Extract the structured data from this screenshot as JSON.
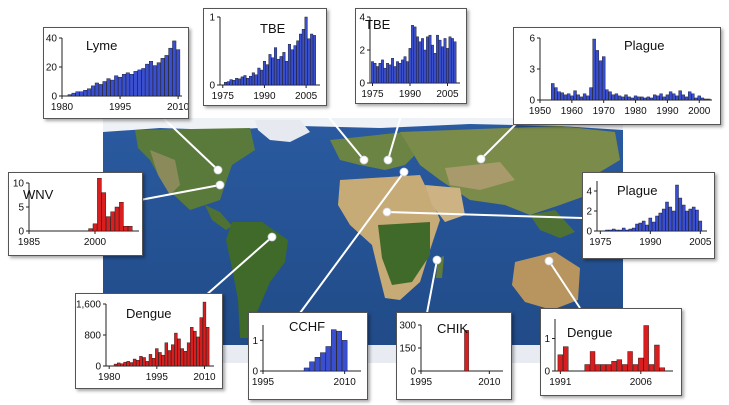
{
  "colors": {
    "ocean": "#2f5f9e",
    "blue_bar": "#3a4fd0",
    "red_bar": "#d81e1e",
    "land_green": "#5e7a3a",
    "desert": "#c9ad79",
    "ice": "#eef1f5"
  },
  "chart_data": [
    {
      "id": "lyme",
      "type": "bar",
      "title": "Lyme",
      "color": "blue",
      "xlim": [
        1980,
        2011
      ],
      "ylim": [
        0,
        40
      ],
      "xticks": [
        {
          "v": 1980,
          "label": "1980"
        },
        {
          "v": 1995,
          "label": "1995"
        },
        {
          "v": 2010,
          "label": "2010"
        }
      ],
      "yticks": [
        {
          "v": 0,
          "label": "0"
        },
        {
          "v": 20,
          "label": "20"
        },
        {
          "v": 40,
          "label": "40"
        }
      ],
      "x": [
        1982,
        1983,
        1984,
        1985,
        1986,
        1987,
        1988,
        1989,
        1990,
        1991,
        1992,
        1993,
        1994,
        1995,
        1996,
        1997,
        1998,
        1999,
        2000,
        2001,
        2002,
        2003,
        2004,
        2005,
        2006,
        2007,
        2008,
        2009,
        2010
      ],
      "values": [
        1,
        2,
        3,
        3,
        4,
        5,
        7,
        9,
        8,
        10,
        12,
        11,
        14,
        13,
        15,
        16,
        15,
        17,
        18,
        19,
        22,
        24,
        21,
        23,
        26,
        28,
        33,
        38,
        32
      ]
    },
    {
      "id": "wnv",
      "type": "bar",
      "title": "WNV",
      "color": "red",
      "xlim": [
        1985,
        2010
      ],
      "ylim": [
        0,
        10
      ],
      "xticks": [
        {
          "v": 1985,
          "label": "1985"
        },
        {
          "v": 2000,
          "label": "2000"
        }
      ],
      "yticks": [
        {
          "v": 0,
          "label": "0"
        },
        {
          "v": 5,
          "label": "5"
        },
        {
          "v": 10,
          "label": "10"
        }
      ],
      "x": [
        1999,
        2000,
        2001,
        2002,
        2003,
        2004,
        2005,
        2006,
        2007,
        2008
      ],
      "values": [
        0.5,
        1.5,
        11,
        8,
        3,
        4,
        5,
        6,
        1,
        1
      ]
    },
    {
      "id": "tbe1",
      "type": "bar",
      "title": "TBE",
      "color": "blue",
      "xlim": [
        1974,
        2010
      ],
      "ylim": [
        0,
        1
      ],
      "xticks": [
        {
          "v": 1975,
          "label": "1975"
        },
        {
          "v": 1990,
          "label": "1990"
        },
        {
          "v": 2005,
          "label": "2005"
        }
      ],
      "yticks": [
        {
          "v": 0,
          "label": "0"
        },
        {
          "v": 1,
          "label": "1"
        }
      ],
      "x": [
        1976,
        1977,
        1978,
        1979,
        1980,
        1981,
        1982,
        1983,
        1984,
        1985,
        1986,
        1987,
        1988,
        1989,
        1990,
        1991,
        1992,
        1993,
        1994,
        1995,
        1996,
        1997,
        1998,
        1999,
        2000,
        2001,
        2002,
        2003,
        2004,
        2005,
        2006,
        2007,
        2008
      ],
      "values": [
        0.04,
        0.05,
        0.08,
        0.07,
        0.1,
        0.09,
        0.12,
        0.14,
        0.1,
        0.13,
        0.18,
        0.15,
        0.25,
        0.22,
        0.35,
        0.3,
        0.45,
        0.4,
        0.55,
        0.38,
        0.42,
        0.48,
        0.35,
        0.6,
        0.52,
        0.58,
        0.65,
        0.75,
        0.82,
        1.0,
        0.68,
        0.75,
        0.73
      ]
    },
    {
      "id": "tbe2",
      "type": "bar",
      "title": "TBE",
      "color": "blue",
      "xlim": [
        1974,
        2010
      ],
      "ylim": [
        0,
        4
      ],
      "xticks": [
        {
          "v": 1975,
          "label": "1975"
        },
        {
          "v": 1990,
          "label": "1990"
        },
        {
          "v": 2005,
          "label": "2005"
        }
      ],
      "yticks": [
        {
          "v": 0,
          "label": "0"
        },
        {
          "v": 2,
          "label": "2"
        },
        {
          "v": 4,
          "label": "4"
        }
      ],
      "x": [
        1975,
        1976,
        1977,
        1978,
        1979,
        1980,
        1981,
        1982,
        1983,
        1984,
        1985,
        1986,
        1987,
        1988,
        1989,
        1990,
        1991,
        1992,
        1993,
        1994,
        1995,
        1996,
        1997,
        1998,
        1999,
        2000,
        2001,
        2002,
        2003,
        2004,
        2005,
        2006,
        2007,
        2008
      ],
      "values": [
        1.3,
        1.2,
        1.0,
        1.2,
        1.4,
        0.9,
        1.2,
        1.1,
        1.5,
        1.0,
        1.3,
        1.2,
        1.4,
        1.6,
        1.3,
        2.1,
        3.5,
        3.4,
        2.8,
        2.5,
        2.7,
        2.0,
        2.8,
        2.9,
        2.3,
        1.8,
        2.9,
        2.6,
        2.2,
        2.7,
        2.1,
        2.8,
        2.7,
        2.5
      ]
    },
    {
      "id": "plague1",
      "type": "bar",
      "title": "Plague",
      "color": "blue",
      "xlim": [
        1950,
        2004
      ],
      "ylim": [
        0,
        6
      ],
      "xticks": [
        {
          "v": 1950,
          "label": "1950"
        },
        {
          "v": 1960,
          "label": "1960"
        },
        {
          "v": 1970,
          "label": "1970"
        },
        {
          "v": 1980,
          "label": "1980"
        },
        {
          "v": 1990,
          "label": "1990"
        },
        {
          "v": 2000,
          "label": "2000"
        }
      ],
      "yticks": [
        {
          "v": 0,
          "label": "0"
        },
        {
          "v": 3,
          "label": "3"
        },
        {
          "v": 6,
          "label": "6"
        }
      ],
      "x": [
        1954,
        1955,
        1956,
        1957,
        1958,
        1959,
        1960,
        1961,
        1962,
        1963,
        1964,
        1965,
        1966,
        1967,
        1968,
        1969,
        1970,
        1971,
        1972,
        1973,
        1974,
        1975,
        1976,
        1977,
        1978,
        1979,
        1980,
        1981,
        1982,
        1983,
        1984,
        1985,
        1986,
        1987,
        1988,
        1989,
        1990,
        1991,
        1992,
        1993,
        1994,
        1995,
        1996,
        1997,
        1998,
        1999,
        2000,
        2001,
        2002,
        2003
      ],
      "values": [
        1.6,
        1.2,
        0.8,
        0.7,
        0.5,
        0.6,
        0.4,
        0.9,
        0.5,
        0.3,
        0.6,
        0.4,
        1.2,
        5.9,
        4.8,
        3.8,
        4.2,
        1.0,
        0.8,
        0.5,
        0.6,
        0.4,
        0.3,
        0.5,
        0.3,
        0.2,
        0.4,
        0.3,
        0.3,
        0.2,
        0.3,
        0.2,
        0.5,
        0.4,
        0.6,
        0.3,
        0.5,
        0.8,
        0.6,
        0.4,
        0.9,
        0.5,
        0.3,
        0.8,
        0.6,
        0.2,
        0.4,
        0.2,
        0.1,
        0.1
      ]
    },
    {
      "id": "plague2",
      "type": "bar",
      "title": "Plague",
      "color": "blue",
      "xlim": [
        1974,
        2007
      ],
      "ylim": [
        0,
        5
      ],
      "xticks": [
        {
          "v": 1975,
          "label": "1975"
        },
        {
          "v": 1990,
          "label": "1990"
        },
        {
          "v": 2005,
          "label": "2005"
        }
      ],
      "yticks": [
        {
          "v": 0,
          "label": "0"
        },
        {
          "v": 2,
          "label": "2"
        },
        {
          "v": 4,
          "label": "4"
        }
      ],
      "x": [
        1977,
        1978,
        1979,
        1980,
        1981,
        1982,
        1983,
        1984,
        1985,
        1986,
        1987,
        1988,
        1989,
        1990,
        1991,
        1992,
        1993,
        1994,
        1995,
        1996,
        1997,
        1998,
        1999,
        2000,
        2001,
        2002,
        2003,
        2004,
        2005
      ],
      "values": [
        0.1,
        0.1,
        0.2,
        0.1,
        0.1,
        0.3,
        0.1,
        0.2,
        0.3,
        0.7,
        0.8,
        1.0,
        0.6,
        1.3,
        0.9,
        1.5,
        1.8,
        2.2,
        2.9,
        2.4,
        2.0,
        4.6,
        3.3,
        2.6,
        2.0,
        2.2,
        2.4,
        2.1,
        1.0
      ]
    },
    {
      "id": "dengue1",
      "type": "bar",
      "title": "Dengue",
      "color": "red",
      "xlim": [
        1979,
        2013
      ],
      "ylim": [
        0,
        1600
      ],
      "xticks": [
        {
          "v": 1980,
          "label": "1980"
        },
        {
          "v": 1995,
          "label": "1995"
        },
        {
          "v": 2010,
          "label": "2010"
        }
      ],
      "yticks": [
        {
          "v": 0,
          "label": "0"
        },
        {
          "v": 800,
          "label": "800"
        },
        {
          "v": 1600,
          "label": "1,600"
        }
      ],
      "x": [
        1982,
        1983,
        1984,
        1985,
        1986,
        1987,
        1988,
        1989,
        1990,
        1991,
        1992,
        1993,
        1994,
        1995,
        1996,
        1997,
        1998,
        1999,
        2000,
        2001,
        2002,
        2003,
        2004,
        2005,
        2006,
        2007,
        2008,
        2009,
        2010,
        2011
      ],
      "values": [
        50,
        80,
        60,
        100,
        120,
        90,
        180,
        150,
        250,
        220,
        120,
        300,
        200,
        450,
        350,
        280,
        600,
        400,
        550,
        850,
        700,
        450,
        380,
        600,
        1000,
        900,
        750,
        1250,
        1650,
        1000
      ]
    },
    {
      "id": "cchf",
      "type": "bar",
      "title": "CCHF",
      "color": "blue",
      "xlim": [
        1995,
        2013
      ],
      "ylim": [
        0,
        1.5
      ],
      "xticks": [
        {
          "v": 1995,
          "label": "1995"
        },
        {
          "v": 2010,
          "label": "2010"
        }
      ],
      "yticks": [
        {
          "v": 0,
          "label": "0"
        },
        {
          "v": 1,
          "label": "1"
        }
      ],
      "x": [
        2003,
        2004,
        2005,
        2006,
        2007,
        2008,
        2009,
        2010
      ],
      "values": [
        0.1,
        0.3,
        0.45,
        0.6,
        0.8,
        1.35,
        1.3,
        1.0
      ]
    },
    {
      "id": "chik",
      "type": "bar",
      "title": "CHIK",
      "color": "red",
      "xlim": [
        1995,
        2013
      ],
      "ylim": [
        0,
        300
      ],
      "xticks": [
        {
          "v": 1995,
          "label": "1995"
        },
        {
          "v": 2010,
          "label": "2010"
        }
      ],
      "yticks": [
        {
          "v": 0,
          "label": "0"
        },
        {
          "v": 150,
          "label": "150"
        },
        {
          "v": 300,
          "label": "300"
        }
      ],
      "x": [
        2005
      ],
      "values": [
        265
      ]
    },
    {
      "id": "dengue2",
      "type": "bar",
      "title": "Dengue",
      "color": "red",
      "xlim": [
        1990,
        2012
      ],
      "ylim": [
        0,
        1.6
      ],
      "xticks": [
        {
          "v": 1991,
          "label": "1991"
        },
        {
          "v": 2006,
          "label": "2006"
        }
      ],
      "yticks": [
        {
          "v": 0,
          "label": "0"
        },
        {
          "v": 1,
          "label": "1"
        }
      ],
      "x": [
        1991,
        1992,
        1996,
        1997,
        1998,
        1999,
        2000,
        2001,
        2002,
        2003,
        2004,
        2005,
        2006,
        2007,
        2008,
        2009,
        2010
      ],
      "values": [
        0.5,
        0.75,
        0.2,
        0.6,
        0.2,
        0.2,
        0.2,
        0.3,
        0.35,
        0.2,
        0.6,
        0.2,
        0.4,
        1.4,
        0.2,
        0.8,
        0.1
      ]
    }
  ]
}
